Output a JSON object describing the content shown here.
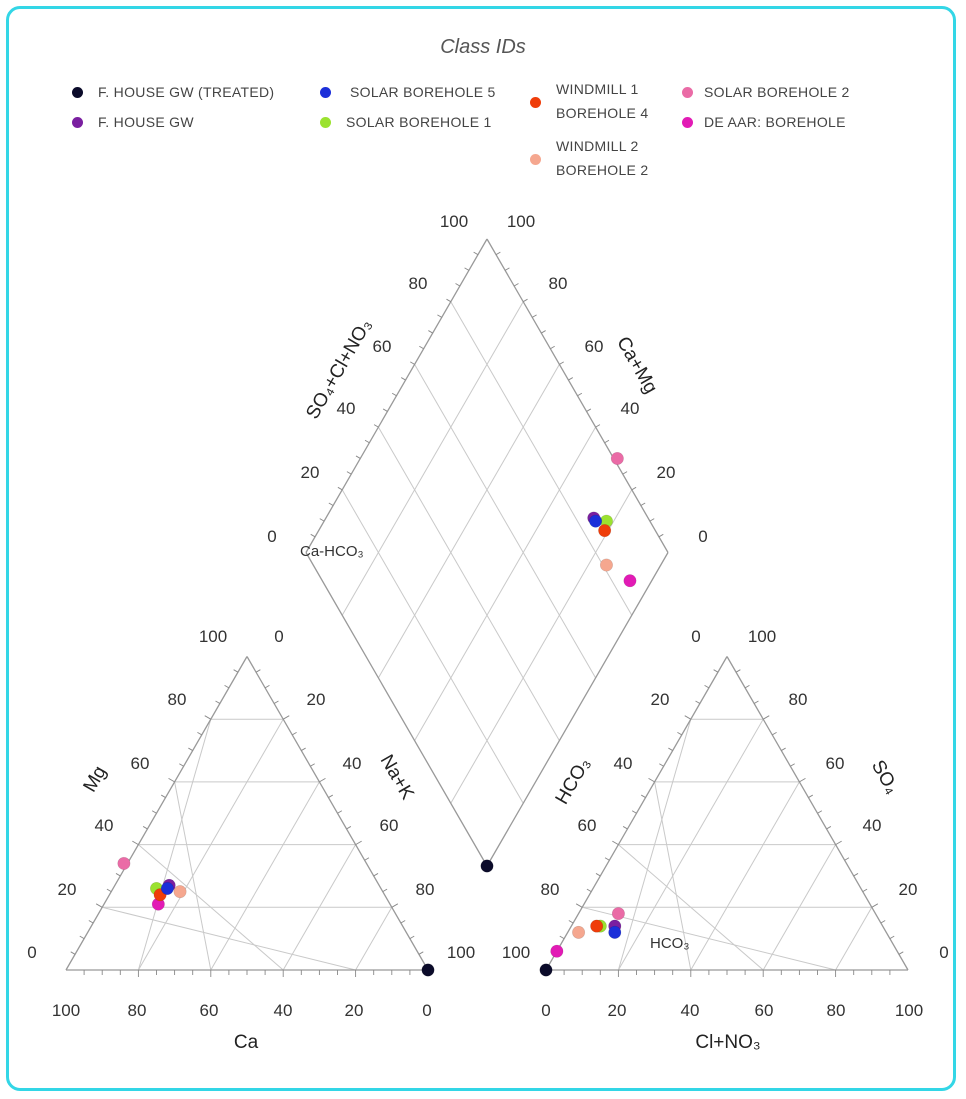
{
  "legend": {
    "title": "Class IDs",
    "items": [
      {
        "label": "F. HOUSE GW (TREATED)",
        "color": "#0b0b2a"
      },
      {
        "label": "F. HOUSE GW",
        "color": "#7a1fa0"
      },
      {
        "label": "SOLAR BOREHOLE 5",
        "color": "#1c2fd9"
      },
      {
        "label": "SOLAR BOREHOLE 1",
        "color": "#9be22f"
      },
      {
        "label": "WINDMILL 1 BOREHOLE 4",
        "line1": "WINDMILL 1",
        "line2": "BOREHOLE 4",
        "color": "#ef3d0a"
      },
      {
        "label": "WINDMILL 2 BOREHOLE 2",
        "line1": "WINDMILL 2",
        "line2": "BOREHOLE 2",
        "color": "#f5a78f"
      },
      {
        "label": "SOLAR BOREHOLE 2",
        "color": "#ea6ba6"
      },
      {
        "label": "DE AAR: BOREHOLE",
        "color": "#e21bb5"
      }
    ]
  },
  "chart_data": {
    "type": "scatter",
    "subtype": "piper_diagram",
    "cation_triangle": {
      "axes": [
        "Ca",
        "Mg",
        "Na+K"
      ],
      "xlabel": "Ca",
      "left_label": "Mg",
      "right_label": "Na+K",
      "ticks_bottom": [
        "100",
        "80",
        "60",
        "40",
        "20",
        "0"
      ],
      "ticks_left": [
        "0",
        "20",
        "40",
        "60",
        "80",
        "100"
      ],
      "ticks_right": [
        "0",
        "20",
        "40",
        "60",
        "80",
        "100"
      ]
    },
    "anion_triangle": {
      "axes": [
        "HCO3",
        "SO4",
        "Cl+NO3"
      ],
      "xlabel": "Cl+NO₃",
      "left_label": "HCO₃",
      "right_label": "SO₄",
      "ticks_bottom": [
        "0",
        "20",
        "40",
        "60",
        "80",
        "100"
      ],
      "ticks_left": [
        "100",
        "80",
        "60",
        "40",
        "20",
        "0"
      ],
      "ticks_right": [
        "100",
        "80",
        "60",
        "40",
        "20",
        "0"
      ],
      "annotation": "HCO₃"
    },
    "diamond": {
      "left_label": "SO₄+Cl+NO₃",
      "right_label": "Ca+Mg",
      "ticks_upper_left": [
        "0",
        "20",
        "40",
        "60",
        "80",
        "100"
      ],
      "ticks_upper_right": [
        "100",
        "80",
        "60",
        "40",
        "20",
        "0"
      ],
      "annotation": "Ca-HCO₃"
    },
    "series": [
      {
        "name": "F. HOUSE GW (TREATED)",
        "color": "#0b0b2a",
        "Ca": 0,
        "Mg": 0,
        "NaK": 100,
        "Cl_NO3": 0,
        "SO4": 0,
        "HCO3": 100
      },
      {
        "name": "F. HOUSE GW",
        "color": "#7a1fa0",
        "Ca": 58,
        "Mg": 27,
        "NaK": 15,
        "Cl_NO3": 12,
        "SO4": 14,
        "HCO3": 74
      },
      {
        "name": "SOLAR BOREHOLE 5",
        "color": "#1c2fd9",
        "Ca": 59,
        "Mg": 26,
        "NaK": 15,
        "Cl_NO3": 13,
        "SO4": 12,
        "HCO3": 75
      },
      {
        "name": "SOLAR BOREHOLE 1",
        "color": "#9be22f",
        "Ca": 62,
        "Mg": 26,
        "NaK": 12,
        "Cl_NO3": 8,
        "SO4": 14,
        "HCO3": 78
      },
      {
        "name": "WINDMILL 1 BOREHOLE 4",
        "color": "#ef3d0a",
        "Ca": 62,
        "Mg": 24,
        "NaK": 14,
        "Cl_NO3": 7,
        "SO4": 14,
        "HCO3": 79
      },
      {
        "name": "WINDMILL 2 BOREHOLE 2",
        "color": "#f5a78f",
        "Ca": 56,
        "Mg": 25,
        "NaK": 19,
        "Cl_NO3": 3,
        "SO4": 12,
        "HCO3": 85
      },
      {
        "name": "SOLAR BOREHOLE 2",
        "color": "#ea6ba6",
        "Ca": 67,
        "Mg": 34,
        "NaK": -1,
        "Cl_NO3": 11,
        "SO4": 18,
        "HCO3": 71
      },
      {
        "name": "DE AAR: BOREHOLE",
        "color": "#e21bb5",
        "Ca": 64,
        "Mg": 21,
        "NaK": 15,
        "Cl_NO3": 0,
        "SO4": 6,
        "HCO3": 94
      }
    ]
  }
}
